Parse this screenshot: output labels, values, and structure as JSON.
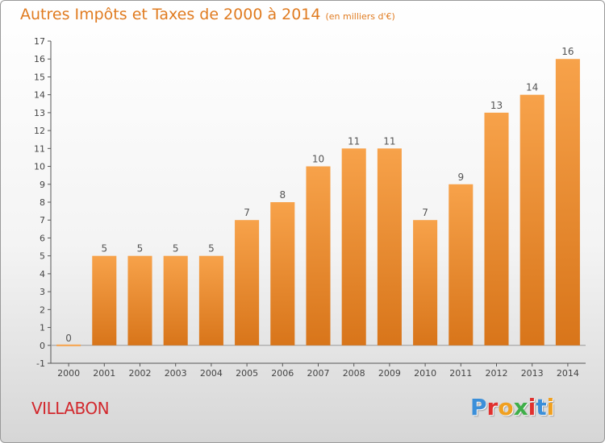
{
  "header": {
    "title": "Autres Impôts et Taxes de 2000 à 2014",
    "unit": "(en milliers d'€)"
  },
  "footer": {
    "place": "VILLABON",
    "brand": "Proxiti"
  },
  "colors": {
    "accent": "#e07b20",
    "place": "#d2282d",
    "bar_top": "#f7a24a",
    "bar_bottom": "#d8751a",
    "brand_letters": [
      "#3b8fd9",
      "#e0302e",
      "#f0a020",
      "#3fae49",
      "#e0302e",
      "#3b8fd9",
      "#f0a020"
    ]
  },
  "chart_data": {
    "type": "bar",
    "title": "Autres Impôts et Taxes de 2000 à 2014",
    "subtitle": "(en milliers d'€)",
    "categories": [
      "2000",
      "2001",
      "2002",
      "2003",
      "2004",
      "2005",
      "2006",
      "2007",
      "2008",
      "2009",
      "2010",
      "2011",
      "2012",
      "2013",
      "2014"
    ],
    "values": [
      0,
      5,
      5,
      5,
      5,
      7,
      8,
      10,
      11,
      11,
      7,
      9,
      13,
      14,
      16
    ],
    "ylim": [
      -1,
      17
    ],
    "yticks": [
      -1,
      0,
      1,
      2,
      3,
      4,
      5,
      6,
      7,
      8,
      9,
      10,
      11,
      12,
      13,
      14,
      15,
      16,
      17
    ],
    "grid": false,
    "legend": "none",
    "data_labels": true
  }
}
